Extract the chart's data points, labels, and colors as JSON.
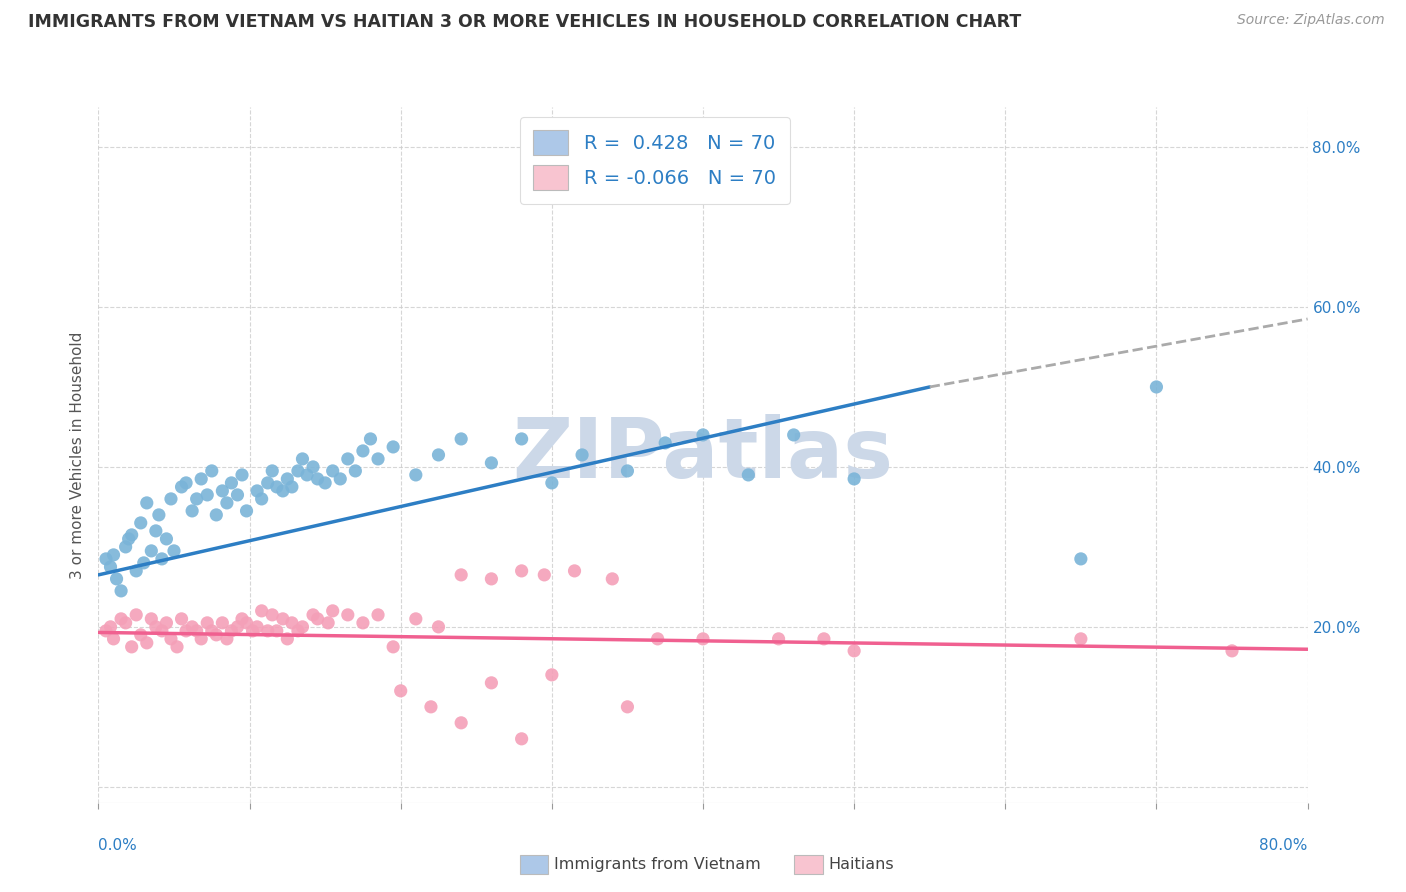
{
  "title": "IMMIGRANTS FROM VIETNAM VS HAITIAN 3 OR MORE VEHICLES IN HOUSEHOLD CORRELATION CHART",
  "source": "Source: ZipAtlas.com",
  "ylabel": "3 or more Vehicles in Household",
  "y_ticks": [
    0.0,
    0.2,
    0.4,
    0.6,
    0.8
  ],
  "y_tick_labels": [
    "",
    "20.0%",
    "40.0%",
    "60.0%",
    "80.0%"
  ],
  "x_range": [
    0.0,
    0.8
  ],
  "y_range": [
    -0.02,
    0.85
  ],
  "vietnam_R": 0.428,
  "haitian_R": -0.066,
  "N": 70,
  "vietnam_color": "#7ab4d8",
  "haitian_color": "#f4a0b8",
  "vietnam_line_color": "#2d7ec4",
  "haitian_line_color": "#f06090",
  "watermark": "ZIPatlas",
  "watermark_color": "#ccd8e8",
  "legend_box_vietnam": "#adc8e8",
  "legend_box_haitian": "#f8c4d0",
  "viet_line_start_x": 0.0,
  "viet_line_start_y": 0.265,
  "viet_line_solid_end_x": 0.55,
  "viet_line_solid_end_y": 0.5,
  "viet_line_dash_end_x": 0.8,
  "viet_line_dash_end_y": 0.585,
  "hait_line_start_x": 0.0,
  "hait_line_start_y": 0.193,
  "hait_line_end_x": 0.8,
  "hait_line_end_y": 0.172,
  "vietnam_scatter_x": [
    0.008,
    0.012,
    0.018,
    0.005,
    0.022,
    0.015,
    0.01,
    0.025,
    0.02,
    0.03,
    0.028,
    0.035,
    0.032,
    0.038,
    0.042,
    0.04,
    0.048,
    0.045,
    0.055,
    0.05,
    0.058,
    0.062,
    0.068,
    0.065,
    0.072,
    0.078,
    0.075,
    0.082,
    0.088,
    0.085,
    0.092,
    0.098,
    0.095,
    0.105,
    0.112,
    0.108,
    0.118,
    0.115,
    0.125,
    0.122,
    0.132,
    0.128,
    0.138,
    0.135,
    0.145,
    0.142,
    0.155,
    0.15,
    0.165,
    0.16,
    0.175,
    0.17,
    0.185,
    0.18,
    0.195,
    0.21,
    0.225,
    0.24,
    0.26,
    0.28,
    0.3,
    0.32,
    0.35,
    0.375,
    0.4,
    0.43,
    0.46,
    0.5,
    0.65,
    0.7
  ],
  "vietnam_scatter_y": [
    0.275,
    0.26,
    0.3,
    0.285,
    0.315,
    0.245,
    0.29,
    0.27,
    0.31,
    0.28,
    0.33,
    0.295,
    0.355,
    0.32,
    0.285,
    0.34,
    0.36,
    0.31,
    0.375,
    0.295,
    0.38,
    0.345,
    0.385,
    0.36,
    0.365,
    0.34,
    0.395,
    0.37,
    0.38,
    0.355,
    0.365,
    0.345,
    0.39,
    0.37,
    0.38,
    0.36,
    0.375,
    0.395,
    0.385,
    0.37,
    0.395,
    0.375,
    0.39,
    0.41,
    0.385,
    0.4,
    0.395,
    0.38,
    0.41,
    0.385,
    0.42,
    0.395,
    0.41,
    0.435,
    0.425,
    0.39,
    0.415,
    0.435,
    0.405,
    0.435,
    0.38,
    0.415,
    0.395,
    0.43,
    0.44,
    0.39,
    0.44,
    0.385,
    0.285,
    0.5
  ],
  "haitian_scatter_x": [
    0.005,
    0.01,
    0.015,
    0.008,
    0.022,
    0.018,
    0.028,
    0.025,
    0.032,
    0.038,
    0.035,
    0.042,
    0.048,
    0.045,
    0.052,
    0.058,
    0.055,
    0.062,
    0.068,
    0.065,
    0.072,
    0.078,
    0.075,
    0.082,
    0.088,
    0.085,
    0.092,
    0.098,
    0.095,
    0.102,
    0.108,
    0.105,
    0.115,
    0.112,
    0.122,
    0.118,
    0.128,
    0.125,
    0.135,
    0.132,
    0.145,
    0.142,
    0.155,
    0.152,
    0.165,
    0.175,
    0.185,
    0.195,
    0.21,
    0.225,
    0.24,
    0.26,
    0.28,
    0.295,
    0.315,
    0.34,
    0.37,
    0.4,
    0.45,
    0.5,
    0.2,
    0.22,
    0.24,
    0.26,
    0.28,
    0.3,
    0.35,
    0.48,
    0.65,
    0.75
  ],
  "haitian_scatter_y": [
    0.195,
    0.185,
    0.21,
    0.2,
    0.175,
    0.205,
    0.19,
    0.215,
    0.18,
    0.2,
    0.21,
    0.195,
    0.185,
    0.205,
    0.175,
    0.195,
    0.21,
    0.2,
    0.185,
    0.195,
    0.205,
    0.19,
    0.195,
    0.205,
    0.195,
    0.185,
    0.2,
    0.205,
    0.21,
    0.195,
    0.22,
    0.2,
    0.215,
    0.195,
    0.21,
    0.195,
    0.205,
    0.185,
    0.2,
    0.195,
    0.21,
    0.215,
    0.22,
    0.205,
    0.215,
    0.205,
    0.215,
    0.175,
    0.21,
    0.2,
    0.265,
    0.26,
    0.27,
    0.265,
    0.27,
    0.26,
    0.185,
    0.185,
    0.185,
    0.17,
    0.12,
    0.1,
    0.08,
    0.13,
    0.06,
    0.14,
    0.1,
    0.185,
    0.185,
    0.17
  ]
}
